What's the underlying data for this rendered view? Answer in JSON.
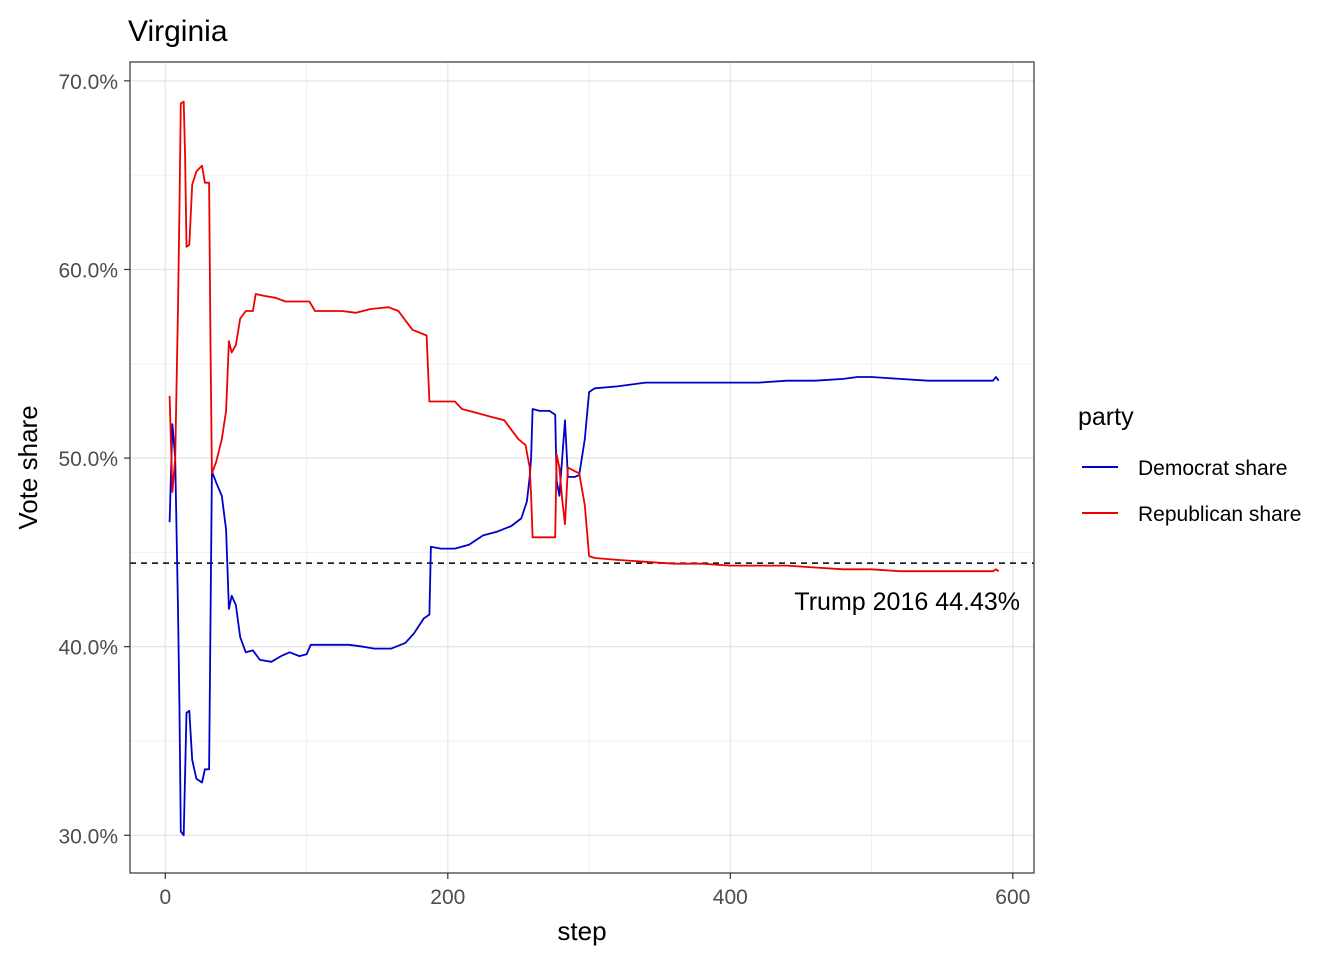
{
  "chart_data": {
    "type": "line",
    "title": "Virginia",
    "xlabel": "step",
    "ylabel": "Vote share",
    "xlim": [
      -25,
      615
    ],
    "ylim": [
      0.28,
      0.71
    ],
    "x_ticks": [
      0,
      200,
      400,
      600
    ],
    "x_tick_labels": [
      "0",
      "200",
      "400",
      "600"
    ],
    "y_ticks": [
      0.3,
      0.4,
      0.5,
      0.6,
      0.7
    ],
    "y_tick_labels": [
      "30.0%",
      "40.0%",
      "50.0%",
      "60.0%",
      "70.0%"
    ],
    "grid": true,
    "legend": {
      "title": "party",
      "position": "right",
      "entries": [
        "Democrat share",
        "Republican share"
      ]
    },
    "reference_line": {
      "y": 0.4443,
      "style": "dashed",
      "label": "Trump 2016 44.43%"
    },
    "series": [
      {
        "name": "Democrat share",
        "color": "#0000CC",
        "points": [
          [
            3,
            0.466
          ],
          [
            5,
            0.518
          ],
          [
            7,
            0.5
          ],
          [
            9,
            0.42
          ],
          [
            10,
            0.37
          ],
          [
            11,
            0.302
          ],
          [
            13,
            0.3
          ],
          [
            15,
            0.365
          ],
          [
            17,
            0.366
          ],
          [
            19,
            0.34
          ],
          [
            22,
            0.33
          ],
          [
            26,
            0.328
          ],
          [
            28,
            0.335
          ],
          [
            31,
            0.335
          ],
          [
            33,
            0.493
          ],
          [
            36,
            0.487
          ],
          [
            40,
            0.48
          ],
          [
            43,
            0.462
          ],
          [
            45,
            0.42
          ],
          [
            47,
            0.427
          ],
          [
            50,
            0.422
          ],
          [
            53,
            0.405
          ],
          [
            57,
            0.397
          ],
          [
            62,
            0.398
          ],
          [
            67,
            0.393
          ],
          [
            75,
            0.392
          ],
          [
            82,
            0.395
          ],
          [
            88,
            0.397
          ],
          [
            95,
            0.395
          ],
          [
            100,
            0.396
          ],
          [
            103,
            0.401
          ],
          [
            112,
            0.401
          ],
          [
            130,
            0.401
          ],
          [
            140,
            0.4
          ],
          [
            148,
            0.399
          ],
          [
            160,
            0.399
          ],
          [
            170,
            0.402
          ],
          [
            176,
            0.407
          ],
          [
            183,
            0.415
          ],
          [
            187,
            0.417
          ],
          [
            188,
            0.453
          ],
          [
            195,
            0.452
          ],
          [
            205,
            0.452
          ],
          [
            215,
            0.454
          ],
          [
            225,
            0.459
          ],
          [
            235,
            0.461
          ],
          [
            245,
            0.464
          ],
          [
            252,
            0.468
          ],
          [
            256,
            0.477
          ],
          [
            258,
            0.49
          ],
          [
            259,
            0.5
          ],
          [
            260,
            0.526
          ],
          [
            265,
            0.525
          ],
          [
            272,
            0.525
          ],
          [
            276,
            0.523
          ],
          [
            277,
            0.488
          ],
          [
            279,
            0.48
          ],
          [
            281,
            0.5
          ],
          [
            283,
            0.52
          ],
          [
            285,
            0.49
          ],
          [
            290,
            0.49
          ],
          [
            293,
            0.491
          ],
          [
            297,
            0.51
          ],
          [
            300,
            0.535
          ],
          [
            304,
            0.537
          ],
          [
            320,
            0.538
          ],
          [
            340,
            0.54
          ],
          [
            360,
            0.54
          ],
          [
            380,
            0.54
          ],
          [
            400,
            0.54
          ],
          [
            420,
            0.54
          ],
          [
            440,
            0.541
          ],
          [
            460,
            0.541
          ],
          [
            480,
            0.542
          ],
          [
            490,
            0.543
          ],
          [
            500,
            0.543
          ],
          [
            520,
            0.542
          ],
          [
            540,
            0.541
          ],
          [
            560,
            0.541
          ],
          [
            580,
            0.541
          ],
          [
            586,
            0.541
          ],
          [
            588,
            0.543
          ],
          [
            590,
            0.541
          ]
        ]
      },
      {
        "name": "Republican share",
        "color": "#EE0000",
        "points": [
          [
            3,
            0.533
          ],
          [
            5,
            0.482
          ],
          [
            7,
            0.5
          ],
          [
            9,
            0.58
          ],
          [
            10,
            0.63
          ],
          [
            11,
            0.688
          ],
          [
            13,
            0.689
          ],
          [
            14,
            0.66
          ],
          [
            15,
            0.612
          ],
          [
            17,
            0.613
          ],
          [
            19,
            0.645
          ],
          [
            22,
            0.652
          ],
          [
            26,
            0.655
          ],
          [
            28,
            0.646
          ],
          [
            31,
            0.646
          ],
          [
            32,
            0.56
          ],
          [
            33,
            0.492
          ],
          [
            36,
            0.498
          ],
          [
            40,
            0.51
          ],
          [
            43,
            0.525
          ],
          [
            45,
            0.562
          ],
          [
            47,
            0.556
          ],
          [
            50,
            0.56
          ],
          [
            53,
            0.574
          ],
          [
            57,
            0.578
          ],
          [
            62,
            0.578
          ],
          [
            64,
            0.587
          ],
          [
            70,
            0.586
          ],
          [
            78,
            0.585
          ],
          [
            85,
            0.583
          ],
          [
            95,
            0.583
          ],
          [
            102,
            0.583
          ],
          [
            106,
            0.578
          ],
          [
            115,
            0.578
          ],
          [
            125,
            0.578
          ],
          [
            135,
            0.577
          ],
          [
            145,
            0.579
          ],
          [
            158,
            0.58
          ],
          [
            165,
            0.578
          ],
          [
            170,
            0.573
          ],
          [
            175,
            0.568
          ],
          [
            185,
            0.565
          ],
          [
            187,
            0.53
          ],
          [
            195,
            0.53
          ],
          [
            205,
            0.53
          ],
          [
            210,
            0.526
          ],
          [
            220,
            0.524
          ],
          [
            230,
            0.522
          ],
          [
            240,
            0.52
          ],
          [
            245,
            0.515
          ],
          [
            250,
            0.51
          ],
          [
            255,
            0.507
          ],
          [
            258,
            0.495
          ],
          [
            259,
            0.48
          ],
          [
            260,
            0.458
          ],
          [
            265,
            0.458
          ],
          [
            272,
            0.458
          ],
          [
            276,
            0.458
          ],
          [
            277,
            0.502
          ],
          [
            279,
            0.495
          ],
          [
            281,
            0.478
          ],
          [
            283,
            0.465
          ],
          [
            285,
            0.495
          ],
          [
            290,
            0.493
          ],
          [
            293,
            0.492
          ],
          [
            297,
            0.475
          ],
          [
            300,
            0.448
          ],
          [
            304,
            0.447
          ],
          [
            320,
            0.446
          ],
          [
            340,
            0.445
          ],
          [
            360,
            0.444
          ],
          [
            380,
            0.444
          ],
          [
            400,
            0.443
          ],
          [
            420,
            0.443
          ],
          [
            440,
            0.443
          ],
          [
            460,
            0.442
          ],
          [
            480,
            0.441
          ],
          [
            500,
            0.441
          ],
          [
            520,
            0.44
          ],
          [
            540,
            0.44
          ],
          [
            560,
            0.44
          ],
          [
            580,
            0.44
          ],
          [
            586,
            0.44
          ],
          [
            588,
            0.441
          ],
          [
            590,
            0.44
          ]
        ]
      }
    ]
  }
}
